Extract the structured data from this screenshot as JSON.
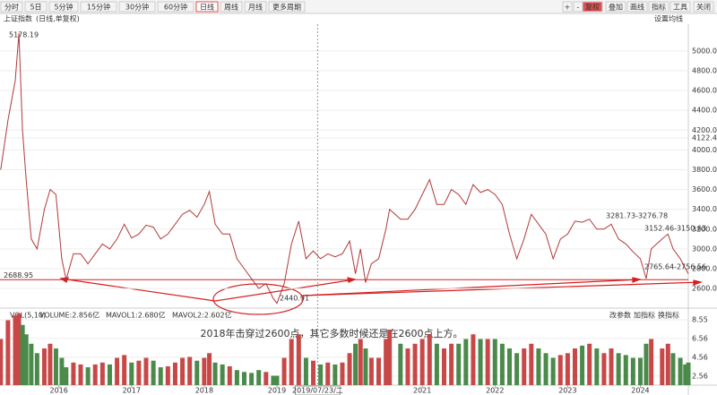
{
  "toolbar": {
    "periods": [
      "分时",
      "5日",
      "5分钟",
      "15分钟",
      "30分钟",
      "60分钟",
      "日线",
      "周线",
      "月线",
      "更多周期"
    ],
    "active_period": "日线",
    "tools": [
      "+",
      "-",
      "复权",
      "叠加",
      "画线",
      "指标",
      "工具",
      "关闭"
    ],
    "active_tool": "复权",
    "symbol": "上证指数",
    "symbol_note": "(日线,单复权)",
    "ma_setting": "设置均线"
  },
  "chart_data": [
    {
      "type": "line",
      "title": "上证指数",
      "color": "#b03a3a",
      "x": [
        2015.2,
        2015.3,
        2015.4,
        2015.45,
        2015.5,
        2015.55,
        2015.62,
        2015.7,
        2015.8,
        2015.88,
        2015.96,
        2016.04,
        2016.1,
        2016.2,
        2016.3,
        2016.4,
        2016.5,
        2016.6,
        2016.7,
        2016.8,
        2016.9,
        2017.0,
        2017.1,
        2017.2,
        2017.3,
        2017.4,
        2017.5,
        2017.6,
        2017.7,
        2017.8,
        2017.9,
        2018.0,
        2018.07,
        2018.15,
        2018.25,
        2018.35,
        2018.45,
        2018.55,
        2018.65,
        2018.75,
        2018.85,
        2018.95,
        2019.0,
        2019.1,
        2019.2,
        2019.3,
        2019.4,
        2019.5,
        2019.6,
        2019.7,
        2019.8,
        2019.9,
        2020.0,
        2020.08,
        2020.15,
        2020.22,
        2020.3,
        2020.4,
        2020.5,
        2020.55,
        2020.7,
        2020.8,
        2020.9,
        2021.0,
        2021.1,
        2021.2,
        2021.3,
        2021.4,
        2021.5,
        2021.6,
        2021.7,
        2021.8,
        2021.9,
        2022.0,
        2022.1,
        2022.2,
        2022.3,
        2022.4,
        2022.5,
        2022.6,
        2022.7,
        2022.8,
        2022.9,
        2023.0,
        2023.1,
        2023.2,
        2023.3,
        2023.4,
        2023.5,
        2023.6,
        2023.7,
        2023.8,
        2023.9,
        2024.0,
        2024.08,
        2024.15,
        2024.3,
        2024.38,
        2024.45,
        2024.55,
        2024.62,
        2024.66
      ],
      "values": [
        3800,
        4300,
        4700,
        5178,
        4200,
        3700,
        3100,
        3000,
        3400,
        3600,
        3550,
        2900,
        2690,
        2950,
        2950,
        2850,
        2950,
        3050,
        3000,
        3100,
        3250,
        3110,
        3150,
        3240,
        3220,
        3100,
        3150,
        3250,
        3350,
        3390,
        3320,
        3450,
        3580,
        3250,
        3150,
        3150,
        2900,
        2800,
        2700,
        2600,
        2650,
        2500,
        2450,
        2650,
        3050,
        3280,
        2900,
        2980,
        2900,
        2950,
        2920,
        2950,
        3080,
        2750,
        3000,
        2660,
        2850,
        2900,
        3200,
        3400,
        3300,
        3300,
        3400,
        3550,
        3700,
        3450,
        3450,
        3600,
        3550,
        3450,
        3650,
        3570,
        3600,
        3550,
        3450,
        3150,
        2900,
        3100,
        3350,
        3250,
        3150,
        2900,
        3100,
        3150,
        3280,
        3270,
        3300,
        3200,
        3200,
        3250,
        3100,
        3050,
        2970,
        2900,
        2700,
        3000,
        3100,
        3150,
        3000,
        2900,
        2800,
        2750
      ],
      "xlim": [
        2015.19,
        2024.66
      ],
      "ylim": [
        2420,
        5270
      ],
      "yticks": [
        {
          "value": 2600,
          "label": "2600.00"
        },
        {
          "value": 2800,
          "label": "2800.00"
        },
        {
          "value": 3000,
          "label": "3000.00"
        },
        {
          "value": 3200,
          "label": "3200.00"
        },
        {
          "value": 3400,
          "label": "3400.00"
        },
        {
          "value": 3600,
          "label": "3600.00"
        },
        {
          "value": 3800,
          "label": "3800.00"
        },
        {
          "value": 4000,
          "label": "4000.00"
        },
        {
          "value": 4122.47,
          "label": "4122.47"
        },
        {
          "value": 4200,
          "label": "4200.00"
        },
        {
          "value": 4400,
          "label": "4400.00"
        },
        {
          "value": 4600,
          "label": "4600.00"
        },
        {
          "value": 4800,
          "label": "4800.00"
        },
        {
          "value": 5000,
          "label": "5000.00"
        }
      ],
      "hline": {
        "value": 2688.95,
        "label": "2688.95",
        "color": "#d42020"
      },
      "annotations": [
        "5178.19",
        "2440.91",
        "3281.73-3276.78",
        "3152.46-3150.63",
        "2765.64-2756.56"
      ],
      "note": "2018年击穿过2600点，其它多数时候还是在2600点上方。",
      "note_color": "#d42020"
    },
    {
      "type": "bar",
      "title": "VOL(5,10)",
      "indicators": [
        {
          "label": "VOLUME:2.856亿",
          "color": "#2255cc"
        },
        {
          "label": "MAVOL1:2.680亿",
          "color": "#cc22aa"
        },
        {
          "label": "MAVOL2:2.602亿",
          "color": "#8844aa"
        }
      ],
      "buttons": [
        "改参数",
        "加指标",
        "换指标"
      ],
      "up_color": "#c84848",
      "down_color": "#4a8a4a",
      "x": [
        2015.2,
        2015.3,
        2015.4,
        2015.45,
        2015.5,
        2015.55,
        2015.62,
        2015.7,
        2015.8,
        2015.88,
        2015.96,
        2016.04,
        2016.1,
        2016.2,
        2016.3,
        2016.4,
        2016.5,
        2016.6,
        2016.7,
        2016.8,
        2016.9,
        2017.0,
        2017.1,
        2017.2,
        2017.3,
        2017.4,
        2017.5,
        2017.6,
        2017.7,
        2017.8,
        2017.9,
        2018.0,
        2018.07,
        2018.15,
        2018.25,
        2018.35,
        2018.45,
        2018.55,
        2018.65,
        2018.75,
        2018.85,
        2018.95,
        2019.0,
        2019.1,
        2019.2,
        2019.3,
        2019.4,
        2019.5,
        2019.6,
        2019.7,
        2019.8,
        2019.9,
        2020.0,
        2020.08,
        2020.15,
        2020.22,
        2020.3,
        2020.4,
        2020.5,
        2020.55,
        2020.7,
        2020.8,
        2020.9,
        2021.0,
        2021.1,
        2021.2,
        2021.3,
        2021.4,
        2021.5,
        2021.6,
        2021.7,
        2021.8,
        2021.9,
        2022.0,
        2022.1,
        2022.2,
        2022.3,
        2022.4,
        2022.5,
        2022.6,
        2022.7,
        2022.8,
        2022.9,
        2023.0,
        2023.1,
        2023.2,
        2023.3,
        2023.4,
        2023.5,
        2023.6,
        2023.7,
        2023.8,
        2023.9,
        2024.0,
        2024.08,
        2024.15,
        2024.3,
        2024.38,
        2024.45,
        2024.55,
        2024.62,
        2024.66
      ],
      "values": [
        6.5,
        8.5,
        9.0,
        9.2,
        8.0,
        7.0,
        6.0,
        5.0,
        5.5,
        6.0,
        5.5,
        4.5,
        3.5,
        4.0,
        3.8,
        3.5,
        3.8,
        4.0,
        3.8,
        4.5,
        4.8,
        4.0,
        4.2,
        4.5,
        4.2,
        3.5,
        3.6,
        4.0,
        4.5,
        4.6,
        4.2,
        4.5,
        5.0,
        4.0,
        3.8,
        3.6,
        3.2,
        3.0,
        2.9,
        3.2,
        3.0,
        2.6,
        2.6,
        4.5,
        6.5,
        7.0,
        4.5,
        4.2,
        3.8,
        4.0,
        3.8,
        4.0,
        5.0,
        6.0,
        6.5,
        5.5,
        4.5,
        4.5,
        6.5,
        7.5,
        6.0,
        5.5,
        6.0,
        6.5,
        7.0,
        6.0,
        5.5,
        6.0,
        6.0,
        6.5,
        7.0,
        6.5,
        6.5,
        6.5,
        6.0,
        5.5,
        5.0,
        5.5,
        6.0,
        5.5,
        5.0,
        4.5,
        4.8,
        5.0,
        5.5,
        5.8,
        6.0,
        5.5,
        5.0,
        5.5,
        5.0,
        4.8,
        4.5,
        4.5,
        6.0,
        6.5,
        5.5,
        6.0,
        5.0,
        4.5,
        3.8,
        4.0
      ],
      "xlim": [
        2015.19,
        2024.66
      ],
      "ylim": [
        1.6,
        9.5
      ],
      "yticks": [
        2.56,
        4.56,
        6.56,
        8.55
      ],
      "xticks": [
        {
          "value": 2016,
          "label": "2016"
        },
        {
          "value": 2017,
          "label": "2017"
        },
        {
          "value": 2018,
          "label": "2018"
        },
        {
          "value": 2019,
          "label": "2019"
        },
        {
          "value": 2021,
          "label": "2021"
        },
        {
          "value": 2022,
          "label": "2022"
        },
        {
          "value": 2023,
          "label": "2023"
        },
        {
          "value": 2024,
          "label": "2024"
        }
      ],
      "cursor": {
        "value": 2019.56,
        "label": "2019/07/23/二"
      }
    }
  ]
}
